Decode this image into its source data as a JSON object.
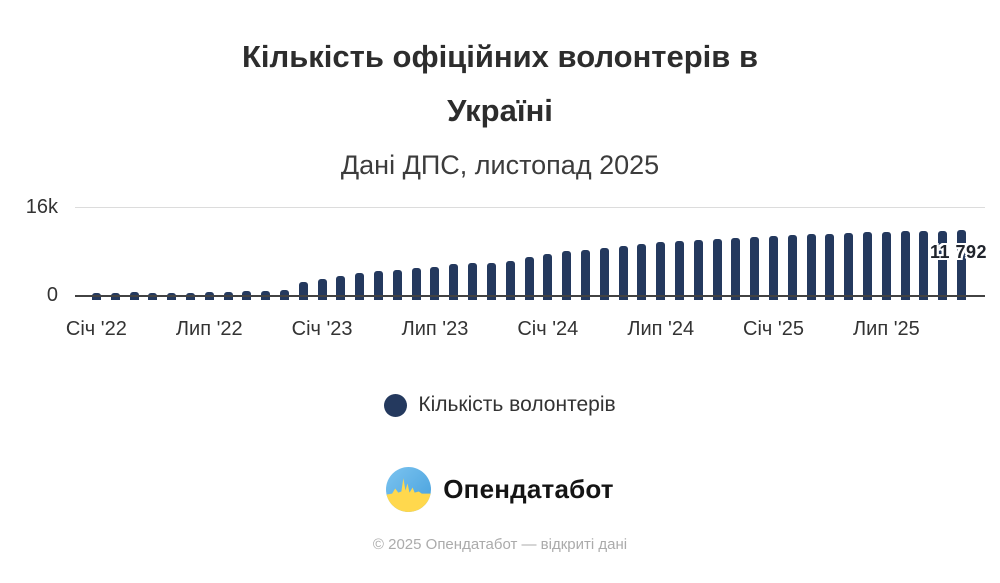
{
  "header": {
    "title_lines": [
      "Кількість офіційних волонтерів в",
      "Україні"
    ],
    "subtitle": "Дані ДПС, листопад 2025"
  },
  "colors": {
    "bar": "#24395E",
    "axis": "#424242",
    "gridline": "#DCDCDC",
    "text": "#333333",
    "muted": "#ABABAB",
    "logo_blue": "#56ABE1",
    "logo_yellow": "#FFD84D"
  },
  "chart_data": {
    "type": "bar",
    "title": "Кількість офіційних волонтерів в Україні",
    "subtitle": "Дані ДПС, листопад 2025",
    "ylim": [
      0,
      16000
    ],
    "grid": "single horizontal gridline at y-max only",
    "y_ticks": [
      {
        "value": 0,
        "label": "0"
      },
      {
        "value": 16000,
        "label": "16k"
      }
    ],
    "x_ticks": [
      {
        "index": 0,
        "label": "Січ '22"
      },
      {
        "index": 6,
        "label": "Лип '22"
      },
      {
        "index": 12,
        "label": "Січ '23"
      },
      {
        "index": 18,
        "label": "Лип '23"
      },
      {
        "index": 24,
        "label": "Січ '24"
      },
      {
        "index": 30,
        "label": "Лип '24"
      },
      {
        "index": 36,
        "label": "Січ '25"
      },
      {
        "index": 42,
        "label": "Лип '25"
      }
    ],
    "categories": [
      "2022-01",
      "2022-02",
      "2022-03",
      "2022-04",
      "2022-05",
      "2022-06",
      "2022-07",
      "2022-08",
      "2022-09",
      "2022-10",
      "2022-11",
      "2022-12",
      "2023-01",
      "2023-02",
      "2023-03",
      "2023-04",
      "2023-05",
      "2023-06",
      "2023-07",
      "2023-08",
      "2023-09",
      "2023-10",
      "2023-11",
      "2023-12",
      "2024-01",
      "2024-02",
      "2024-03",
      "2024-04",
      "2024-05",
      "2024-06",
      "2024-07",
      "2024-08",
      "2024-09",
      "2024-10",
      "2024-11",
      "2024-12",
      "2025-01",
      "2025-02",
      "2025-03",
      "2025-04",
      "2025-05",
      "2025-06",
      "2025-07",
      "2025-08",
      "2025-09",
      "2025-10",
      "2025-11"
    ],
    "values": [
      600,
      610,
      650,
      620,
      600,
      620,
      640,
      670,
      900,
      960,
      1100,
      2600,
      3000,
      3550,
      4200,
      4450,
      4650,
      5050,
      5300,
      5700,
      5850,
      6000,
      6300,
      7000,
      7600,
      8050,
      8250,
      8650,
      9000,
      9400,
      9750,
      9850,
      10000,
      10250,
      10400,
      10600,
      10750,
      11000,
      11100,
      11200,
      11350,
      11450,
      11550,
      11620,
      11680,
      11750,
      11792
    ],
    "last_value_label": "11 792",
    "legend": {
      "position": "bottom",
      "items": [
        {
          "label": "Кількість волонтерів",
          "color": "#24395E"
        }
      ]
    }
  },
  "branding": {
    "logo_text": "Опендатабот"
  },
  "footer": {
    "text": "© 2025 Опендатабот — відкриті дані"
  }
}
